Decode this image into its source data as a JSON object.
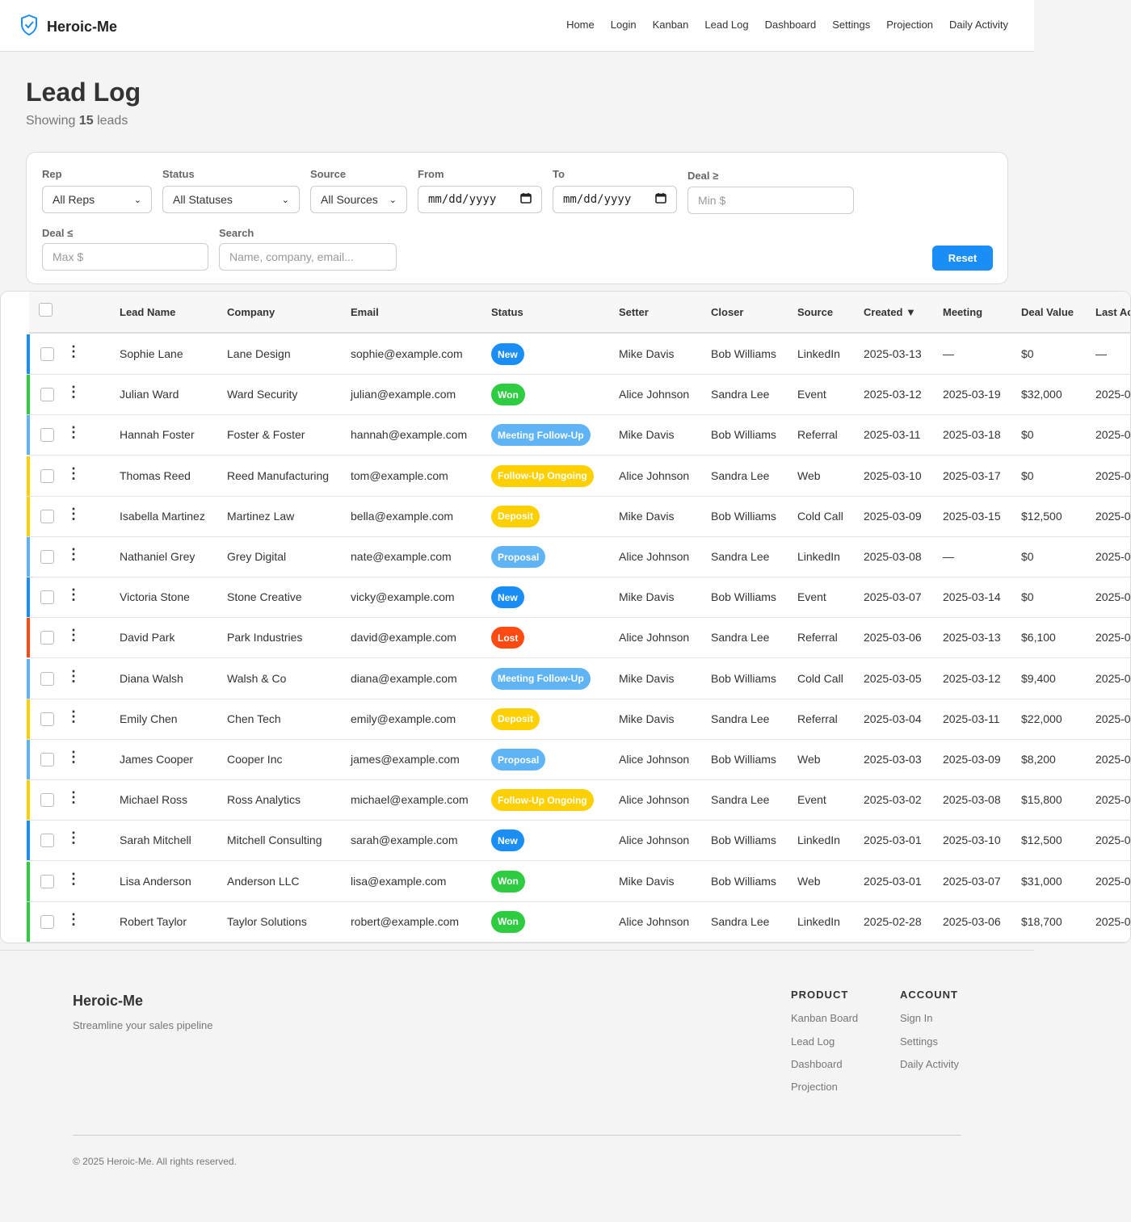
{
  "brand": {
    "name": "Heroic-Me",
    "logo_icon": "shield-check-icon",
    "accent": "#1b8ef5"
  },
  "nav": [
    "Home",
    "Login",
    "Kanban",
    "Lead Log",
    "Dashboard",
    "Settings",
    "Projection",
    "Daily Activity"
  ],
  "page": {
    "title": "Lead Log",
    "showing_prefix": "Showing",
    "count": "15",
    "showing_suffix": "leads"
  },
  "filters": {
    "rep": {
      "label": "Rep",
      "value": "All Reps"
    },
    "status": {
      "label": "Status",
      "value": "All Statuses"
    },
    "source": {
      "label": "Source",
      "value": "All Sources"
    },
    "from": {
      "label": "From",
      "value": "mm/dd/yyyy"
    },
    "to": {
      "label": "To",
      "value": "mm/dd/yyyy"
    },
    "deal_min": {
      "label": "Deal ≥",
      "placeholder": "Min $"
    },
    "deal_max": {
      "label": "Deal ≤",
      "placeholder": "Max $"
    },
    "search": {
      "label": "Search",
      "placeholder": "Name, company, email..."
    },
    "reset_label": "Reset"
  },
  "table": {
    "columns": [
      "Lead Name",
      "Company",
      "Email",
      "Status",
      "Setter",
      "Closer",
      "Source",
      "Created ▼",
      "Meeting",
      "Deal Value",
      "Last Ac"
    ],
    "status_colors": {
      "New": "#1b8ef5",
      "Won": "#2ecc40",
      "Meeting Follow-Up": "#5fb4f5",
      "Follow-Up Ongoing": "#ffd000",
      "Deposit": "#ffd000",
      "Proposal": "#5fb4f5",
      "Lost": "#ff4a12"
    },
    "rows": [
      {
        "name": "Sophie Lane",
        "company": "Lane Design",
        "email": "sophie@example.com",
        "status": "New",
        "setter": "Mike Davis",
        "closer": "Bob Williams",
        "source": "LinkedIn",
        "created": "2025-03-13",
        "meeting": "—",
        "deal": "$0",
        "last": "—"
      },
      {
        "name": "Julian Ward",
        "company": "Ward Security",
        "email": "julian@example.com",
        "status": "Won",
        "setter": "Alice Johnson",
        "closer": "Sandra Lee",
        "source": "Event",
        "created": "2025-03-12",
        "meeting": "2025-03-19",
        "deal": "$32,000",
        "last": "2025-0"
      },
      {
        "name": "Hannah Foster",
        "company": "Foster & Foster",
        "email": "hannah@example.com",
        "status": "Meeting Follow-Up",
        "setter": "Mike Davis",
        "closer": "Bob Williams",
        "source": "Referral",
        "created": "2025-03-11",
        "meeting": "2025-03-18",
        "deal": "$0",
        "last": "2025-0"
      },
      {
        "name": "Thomas Reed",
        "company": "Reed Manufacturing",
        "email": "tom@example.com",
        "status": "Follow-Up Ongoing",
        "setter": "Alice Johnson",
        "closer": "Sandra Lee",
        "source": "Web",
        "created": "2025-03-10",
        "meeting": "2025-03-17",
        "deal": "$0",
        "last": "2025-0"
      },
      {
        "name": "Isabella Martinez",
        "company": "Martinez Law",
        "email": "bella@example.com",
        "status": "Deposit",
        "setter": "Mike Davis",
        "closer": "Bob Williams",
        "source": "Cold Call",
        "created": "2025-03-09",
        "meeting": "2025-03-15",
        "deal": "$12,500",
        "last": "2025-0"
      },
      {
        "name": "Nathaniel Grey",
        "company": "Grey Digital",
        "email": "nate@example.com",
        "status": "Proposal",
        "setter": "Alice Johnson",
        "closer": "Sandra Lee",
        "source": "LinkedIn",
        "created": "2025-03-08",
        "meeting": "—",
        "deal": "$0",
        "last": "2025-0"
      },
      {
        "name": "Victoria Stone",
        "company": "Stone Creative",
        "email": "vicky@example.com",
        "status": "New",
        "setter": "Mike Davis",
        "closer": "Bob Williams",
        "source": "Event",
        "created": "2025-03-07",
        "meeting": "2025-03-14",
        "deal": "$0",
        "last": "2025-0"
      },
      {
        "name": "David Park",
        "company": "Park Industries",
        "email": "david@example.com",
        "status": "Lost",
        "setter": "Alice Johnson",
        "closer": "Sandra Lee",
        "source": "Referral",
        "created": "2025-03-06",
        "meeting": "2025-03-13",
        "deal": "$6,100",
        "last": "2025-0"
      },
      {
        "name": "Diana Walsh",
        "company": "Walsh & Co",
        "email": "diana@example.com",
        "status": "Meeting Follow-Up",
        "setter": "Mike Davis",
        "closer": "Bob Williams",
        "source": "Cold Call",
        "created": "2025-03-05",
        "meeting": "2025-03-12",
        "deal": "$9,400",
        "last": "2025-0"
      },
      {
        "name": "Emily Chen",
        "company": "Chen Tech",
        "email": "emily@example.com",
        "status": "Deposit",
        "setter": "Mike Davis",
        "closer": "Sandra Lee",
        "source": "Referral",
        "created": "2025-03-04",
        "meeting": "2025-03-11",
        "deal": "$22,000",
        "last": "2025-0"
      },
      {
        "name": "James Cooper",
        "company": "Cooper Inc",
        "email": "james@example.com",
        "status": "Proposal",
        "setter": "Alice Johnson",
        "closer": "Bob Williams",
        "source": "Web",
        "created": "2025-03-03",
        "meeting": "2025-03-09",
        "deal": "$8,200",
        "last": "2025-0"
      },
      {
        "name": "Michael Ross",
        "company": "Ross Analytics",
        "email": "michael@example.com",
        "status": "Follow-Up Ongoing",
        "setter": "Alice Johnson",
        "closer": "Sandra Lee",
        "source": "Event",
        "created": "2025-03-02",
        "meeting": "2025-03-08",
        "deal": "$15,800",
        "last": "2025-0"
      },
      {
        "name": "Sarah Mitchell",
        "company": "Mitchell Consulting",
        "email": "sarah@example.com",
        "status": "New",
        "setter": "Alice Johnson",
        "closer": "Bob Williams",
        "source": "LinkedIn",
        "created": "2025-03-01",
        "meeting": "2025-03-10",
        "deal": "$12,500",
        "last": "2025-0"
      },
      {
        "name": "Lisa Anderson",
        "company": "Anderson LLC",
        "email": "lisa@example.com",
        "status": "Won",
        "setter": "Mike Davis",
        "closer": "Bob Williams",
        "source": "Web",
        "created": "2025-03-01",
        "meeting": "2025-03-07",
        "deal": "$31,000",
        "last": "2025-0"
      },
      {
        "name": "Robert Taylor",
        "company": "Taylor Solutions",
        "email": "robert@example.com",
        "status": "Won",
        "setter": "Alice Johnson",
        "closer": "Sandra Lee",
        "source": "LinkedIn",
        "created": "2025-02-28",
        "meeting": "2025-03-06",
        "deal": "$18,700",
        "last": "2025-0"
      }
    ]
  },
  "footer": {
    "brand": "Heroic-Me",
    "tagline": "Streamline your sales pipeline",
    "product_heading": "PRODUCT",
    "product_links": [
      "Kanban Board",
      "Lead Log",
      "Dashboard",
      "Projection"
    ],
    "account_heading": "ACCOUNT",
    "account_links": [
      "Sign In",
      "Settings",
      "Daily Activity"
    ],
    "copyright": "© 2025 Heroic-Me. All rights reserved."
  }
}
